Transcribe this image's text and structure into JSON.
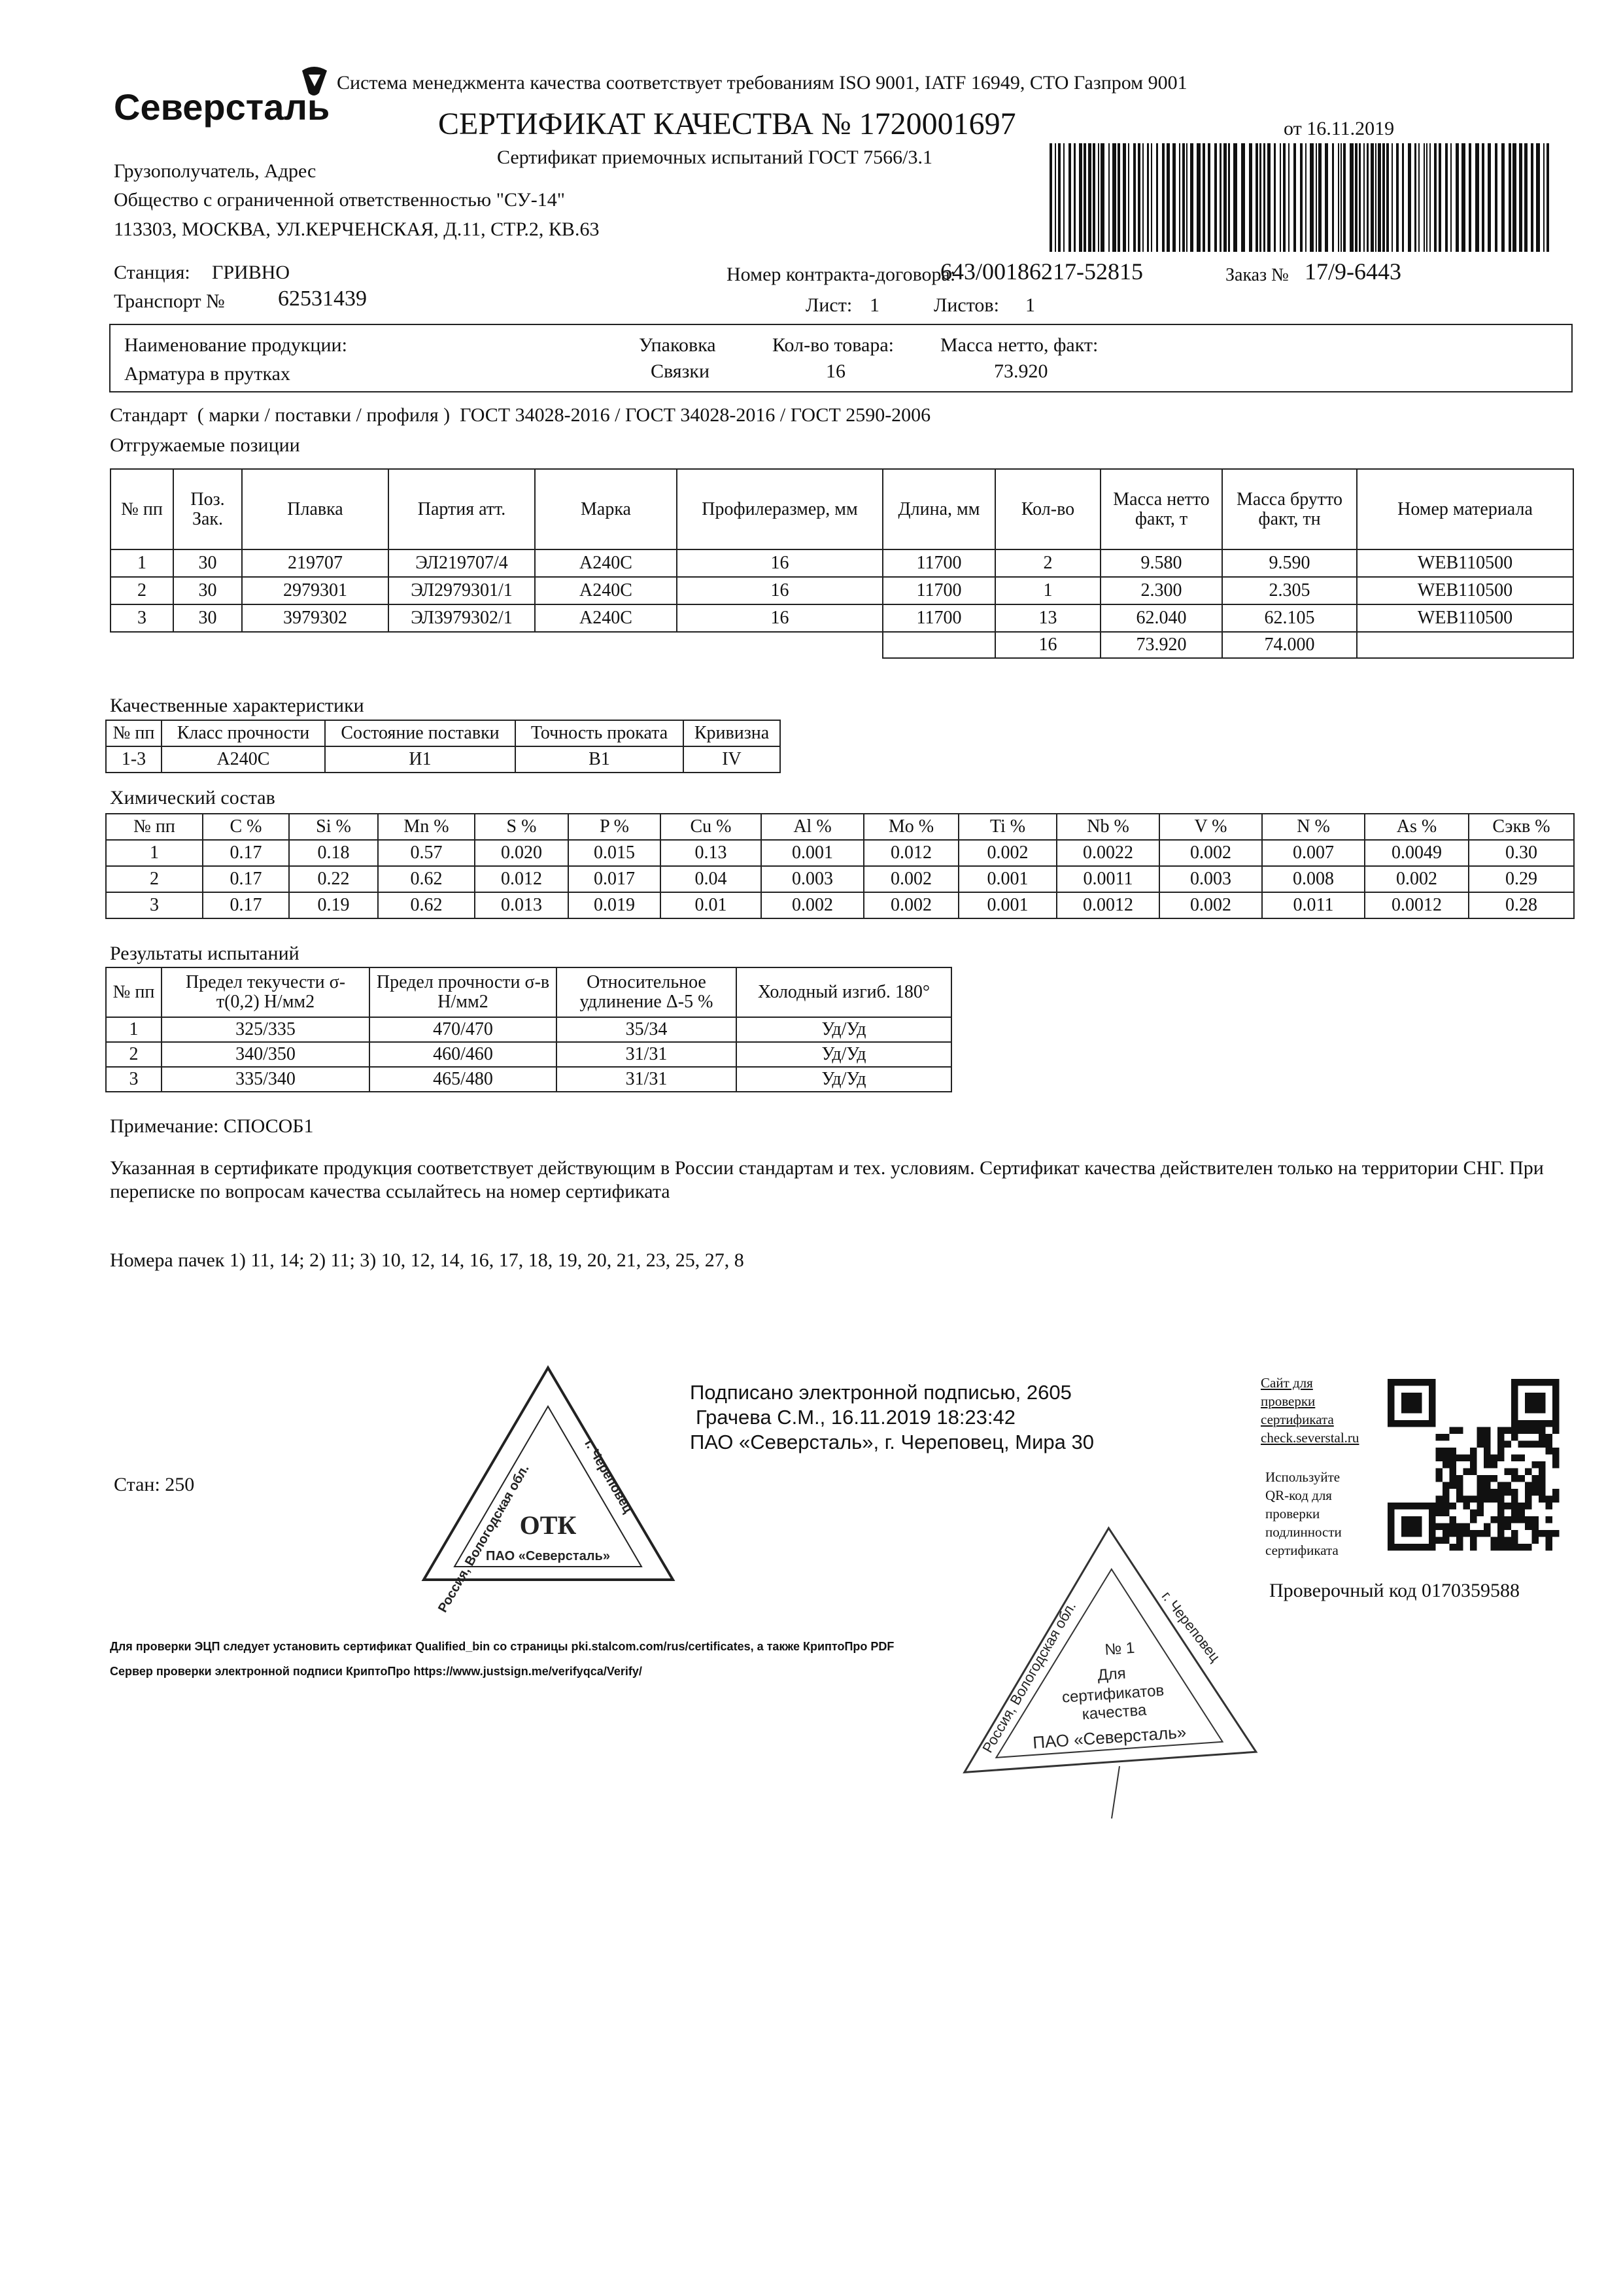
{
  "header": {
    "iso_note": "Система менеджмента качества соответствует требованиям ISO 9001, IATF 16949, СТО Газпром 9001",
    "logo": "Северсталь",
    "title": "СЕРТИФИКАТ КАЧЕСТВА № 1720001697",
    "subtitle": "Сертификат приемочных испытаний ГОСТ 7566/3.1",
    "date": "от 16.11.2019"
  },
  "consignee": {
    "label": "Грузополучатель, Адрес",
    "name": "Общество с ограниченной ответственностью \"СУ-14\"",
    "address": "113303, МОСКВА, УЛ.КЕРЧЕНСКАЯ, Д.11, СТР.2, КВ.63"
  },
  "shipping": {
    "station_label": "Станция:",
    "station": "ГРИВНО",
    "transport_label": "Транспорт №",
    "transport": "62531439",
    "contract_label": "Номер контракта-договора:",
    "contract": "643/00186217-52815",
    "order_label": "Заказ №",
    "order": "17/9-6443",
    "sheet_label": "Лист:",
    "sheet": "1",
    "sheets_label": "Листов:",
    "sheets": "1"
  },
  "product": {
    "headers": [
      "Наименование продукции:",
      "Упаковка",
      "Кол-во товара:",
      "Масса нетто, факт:"
    ],
    "values": [
      "Арматура в прутках",
      "Связки",
      "16",
      "73.920"
    ]
  },
  "standard": "Стандарт  ( марки / поставки / профиля )  ГОСТ 34028-2016 / ГОСТ 34028-2016 / ГОСТ 2590-2006",
  "positions": {
    "title": "Отгружаемые позиции",
    "headers": [
      "№ пп",
      "Поз. Зак.",
      "Плавка",
      "Партия атт.",
      "Марка",
      "Профилеразмер, мм",
      "Длина, мм",
      "Кол-во",
      "Масса нетто факт, т",
      "Масса брутто факт, тн",
      "Номер материала"
    ],
    "rows": [
      [
        "1",
        "30",
        "219707",
        "ЭЛ219707/4",
        "А240С",
        "16",
        "11700",
        "2",
        "9.580",
        "9.590",
        "WEB110500"
      ],
      [
        "2",
        "30",
        "2979301",
        "ЭЛ2979301/1",
        "А240С",
        "16",
        "11700",
        "1",
        "2.300",
        "2.305",
        "WEB110500"
      ],
      [
        "3",
        "30",
        "3979302",
        "ЭЛ3979302/1",
        "А240С",
        "16",
        "11700",
        "13",
        "62.040",
        "62.105",
        "WEB110500"
      ]
    ],
    "total": {
      "qty": "16",
      "net": "73.920",
      "gross": "74.000"
    }
  },
  "quality": {
    "title": "Качественные характеристики",
    "headers": [
      "№ пп",
      "Класс прочности",
      "Состояние поставки",
      "Точность проката",
      "Кривизна"
    ],
    "rows": [
      [
        "1-3",
        "А240С",
        "И1",
        "В1",
        "IV"
      ]
    ]
  },
  "chemistry": {
    "title": "Химический состав",
    "headers": [
      "№ пп",
      "C %",
      "Si %",
      "Mn %",
      "S %",
      "P %",
      "Cu %",
      "Al %",
      "Mo %",
      "Ti %",
      "Nb %",
      "V %",
      "N %",
      "As %",
      "Сэкв %"
    ],
    "rows": [
      [
        "1",
        "0.17",
        "0.18",
        "0.57",
        "0.020",
        "0.015",
        "0.13",
        "0.001",
        "0.012",
        "0.002",
        "0.0022",
        "0.002",
        "0.007",
        "0.0049",
        "0.30"
      ],
      [
        "2",
        "0.17",
        "0.22",
        "0.62",
        "0.012",
        "0.017",
        "0.04",
        "0.003",
        "0.002",
        "0.001",
        "0.0011",
        "0.003",
        "0.008",
        "0.002",
        "0.29"
      ],
      [
        "3",
        "0.17",
        "0.19",
        "0.62",
        "0.013",
        "0.019",
        "0.01",
        "0.002",
        "0.002",
        "0.001",
        "0.0012",
        "0.002",
        "0.011",
        "0.0012",
        "0.28"
      ]
    ]
  },
  "tests": {
    "title": "Результаты испытаний",
    "headers": [
      "№ пп",
      "Предел текучести σ-т(0,2) Н/мм2",
      "Предел прочности σ-в Н/мм2",
      "Относительное удлинение Δ-5 %",
      "Холодный изгиб. 180°"
    ],
    "rows": [
      [
        "1",
        "325/335",
        "470/470",
        "35/34",
        "Уд/Уд"
      ],
      [
        "2",
        "340/350",
        "460/460",
        "31/31",
        "Уд/Уд"
      ],
      [
        "3",
        "335/340",
        "465/480",
        "31/31",
        "Уд/Уд"
      ]
    ]
  },
  "note": "Примечание: СПОСОБ1",
  "statement": "Указанная в сертификате продукция соответствует действующим в России стандартам и тех. условиям. Сертификат качества действителен только на территории СНГ. При переписке по вопросам качества ссылайтесь на номер сертификата",
  "bundles": "Номера пачек 1) 11, 14; 2) 11; 3) 10, 12, 14, 16, 17, 18, 19, 20, 21, 23, 25, 27, 8",
  "signature": [
    "Подписано электронной подписью, 2605",
    "Грачева С.М., 16.11.2019 18:23:42",
    "ПАО «Северсталь», г. Череповец, Мира 30"
  ],
  "mill": "Стан: 250",
  "verification": {
    "site": [
      "Сайт для",
      "проверки",
      "сертификата",
      "check.severstal.ru"
    ],
    "qr_text": [
      "Используйте",
      "QR-код для",
      "проверки",
      "подлинности",
      "сертификата"
    ],
    "code": "Проверочный код 0170359588"
  },
  "footer": [
    "Для проверки ЭЦП следует установить сертификат Qualified_bin со страницы pki.stalcom.com/rus/certificates, а также КриптоПро PDF",
    "Сервер проверки электронной подписи КриптоПро  https://www.justsign.me/verifyqca/Verify/"
  ],
  "stamp_otk": {
    "region": "Россия, Вологодская обл.",
    "city": "г. Череповец",
    "dept": "ОТК",
    "company": "ПАО «Северсталь»"
  },
  "stamp_cert": {
    "region": "Россия, Вологодская обл.",
    "city": "г. Череповец",
    "number": "№ 1",
    "purpose": [
      "Для",
      "сертификатов",
      "качества"
    ],
    "company": "ПАО «Северсталь»"
  }
}
